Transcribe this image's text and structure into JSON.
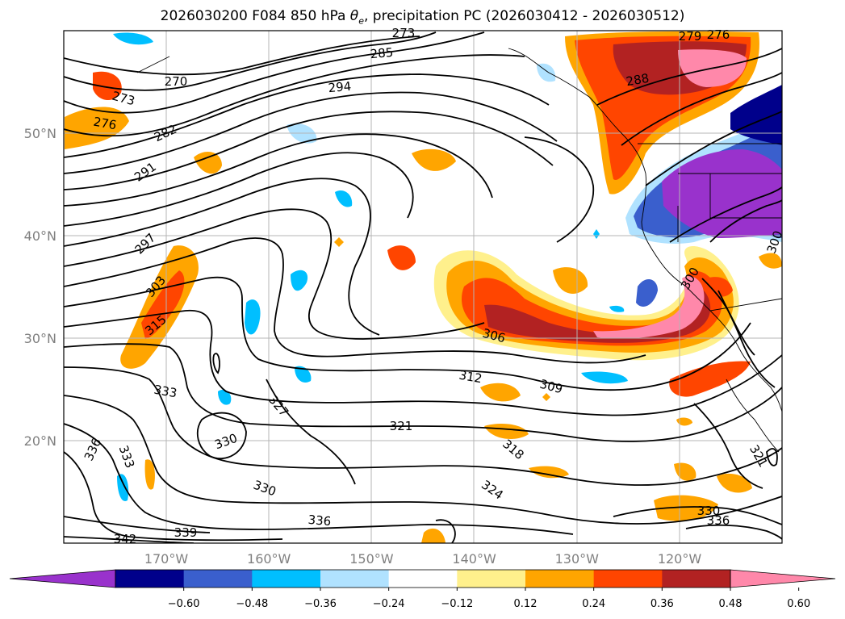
{
  "title": {
    "prefix": "2026030200 F084 850 hPa ",
    "theta": "θ",
    "theta_sub": "e",
    "suffix": ", precipitation PC (2026030412 - 2026030512)"
  },
  "longitudes": [
    {
      "lon": -170,
      "label": "170°W"
    },
    {
      "lon": -160,
      "label": "160°W"
    },
    {
      "lon": -150,
      "label": "150°W"
    },
    {
      "lon": -140,
      "label": "140°W"
    },
    {
      "lon": -130,
      "label": "130°W"
    },
    {
      "lon": -120,
      "label": "120°W"
    }
  ],
  "latitudes": [
    {
      "lat": 20,
      "label": "20°N"
    },
    {
      "lat": 30,
      "label": "30°N"
    },
    {
      "lat": 40,
      "label": "40°N"
    },
    {
      "lat": 50,
      "label": "50°N"
    }
  ],
  "contour_labels": [
    "270",
    "273",
    "276",
    "279",
    "282",
    "285",
    "288",
    "291",
    "294",
    "297",
    "300",
    "303",
    "306",
    "309",
    "312",
    "315",
    "318",
    "321",
    "324",
    "327",
    "330",
    "333",
    "336",
    "339",
    "342"
  ],
  "colorbar": {
    "colors": [
      "#9932cc",
      "#00008b",
      "#3a5fcd",
      "#00bfff",
      "#b0e2ff",
      "#ffffff",
      "#fff08c",
      "#ffa500",
      "#ff4500",
      "#b22222",
      "#ff88aa"
    ],
    "ticks": [
      "−0.60",
      "−0.48",
      "−0.36",
      "−0.24",
      "−0.12",
      "0.12",
      "0.24",
      "0.36",
      "0.48",
      "0.60"
    ]
  }
}
